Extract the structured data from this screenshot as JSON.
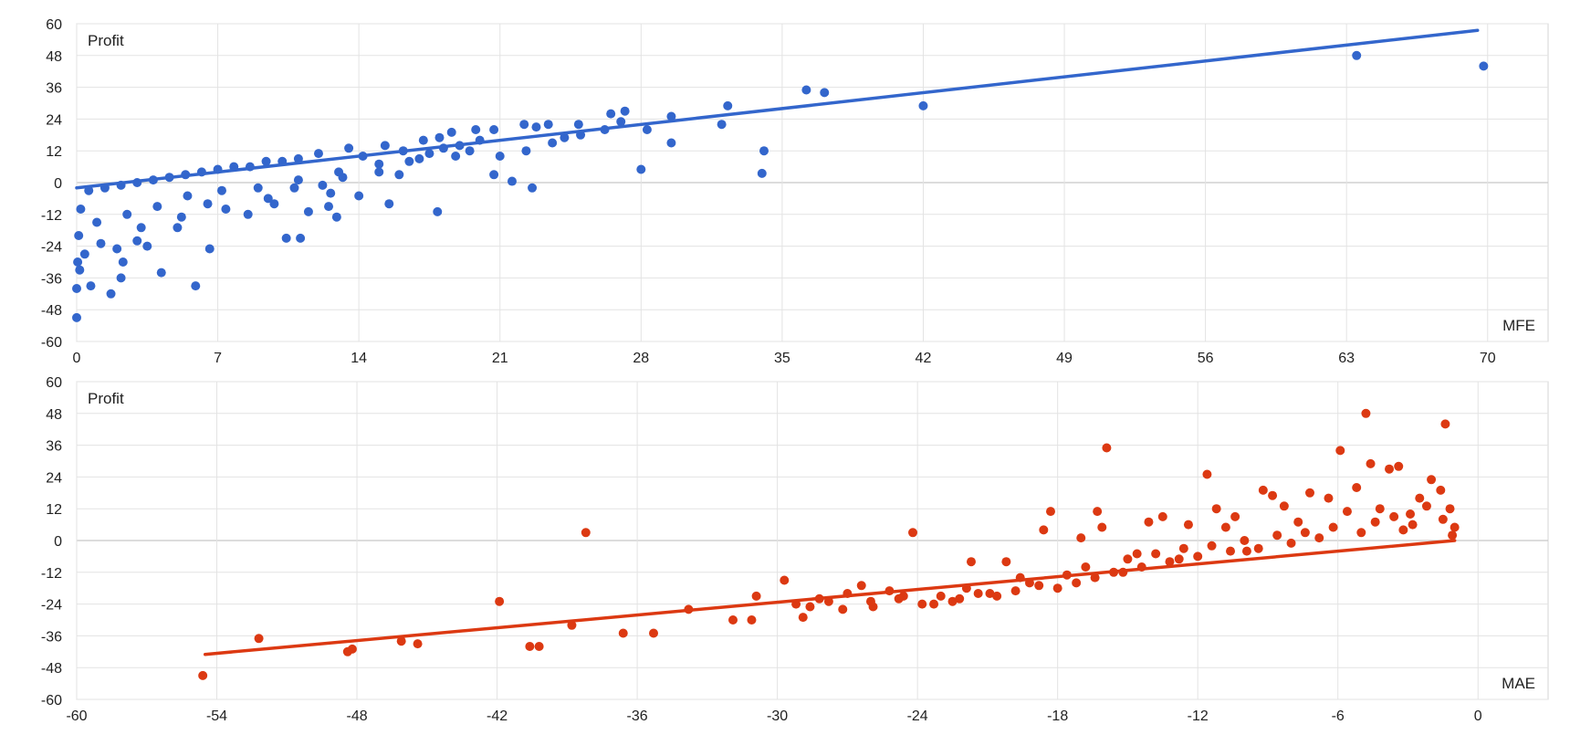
{
  "chart_data": [
    {
      "type": "scatter",
      "xlabel": "MFE",
      "ylabel": "Profit",
      "xlim": [
        0,
        73
      ],
      "ylim": [
        -60,
        60
      ],
      "xticks": [
        0,
        7,
        14,
        21,
        28,
        35,
        42,
        49,
        56,
        63,
        70
      ],
      "yticks": [
        60,
        48,
        36,
        24,
        12,
        0,
        -12,
        -24,
        -36,
        -48,
        -60
      ],
      "grid": true,
      "color": "#3366cc",
      "trendline": {
        "x": [
          0,
          69.5
        ],
        "y": [
          -2,
          57.5
        ]
      },
      "points": [
        [
          63.5,
          48
        ],
        [
          69.8,
          44
        ],
        [
          36.2,
          35
        ],
        [
          37.1,
          34
        ],
        [
          42,
          29
        ],
        [
          32.3,
          29
        ],
        [
          32,
          22
        ],
        [
          29.5,
          25
        ],
        [
          29.5,
          15
        ],
        [
          28,
          5
        ],
        [
          27.2,
          27
        ],
        [
          26.5,
          26
        ],
        [
          27,
          23
        ],
        [
          28.3,
          20
        ],
        [
          34.1,
          12
        ],
        [
          34,
          3.5
        ],
        [
          24.9,
          22
        ],
        [
          23.4,
          22
        ],
        [
          22.2,
          22
        ],
        [
          22.8,
          21
        ],
        [
          24.2,
          17
        ],
        [
          20.7,
          20
        ],
        [
          18.6,
          19
        ],
        [
          19.8,
          20
        ],
        [
          22.6,
          -2
        ],
        [
          21.6,
          0.5
        ],
        [
          20.7,
          3
        ],
        [
          17.9,
          -11
        ],
        [
          15.5,
          -8
        ],
        [
          14,
          -5
        ],
        [
          12.9,
          -13
        ],
        [
          12.5,
          -9
        ],
        [
          11.5,
          -11
        ],
        [
          10.4,
          -21
        ],
        [
          11.1,
          -21
        ],
        [
          6.6,
          -25
        ],
        [
          5.9,
          -39
        ],
        [
          4.2,
          -34
        ],
        [
          2.2,
          -36
        ],
        [
          1.7,
          -42
        ],
        [
          0.7,
          -39
        ],
        [
          0,
          -40
        ],
        [
          0,
          -51
        ],
        [
          2.3,
          -30
        ],
        [
          2,
          -25
        ],
        [
          3,
          -22
        ],
        [
          3.5,
          -24
        ],
        [
          5,
          -17
        ],
        [
          6.5,
          -8
        ],
        [
          8.5,
          -12
        ],
        [
          9.5,
          -6
        ],
        [
          10.8,
          -2
        ],
        [
          12.2,
          -1
        ],
        [
          13.2,
          2
        ],
        [
          15,
          4
        ],
        [
          16.5,
          8
        ],
        [
          17.5,
          11
        ],
        [
          18.8,
          10
        ],
        [
          19.5,
          12
        ],
        [
          21,
          10
        ],
        [
          22.3,
          12
        ],
        [
          23.6,
          15
        ],
        [
          15.3,
          14
        ],
        [
          16.2,
          12
        ],
        [
          17.2,
          16
        ],
        [
          18,
          17
        ],
        [
          14.2,
          10
        ],
        [
          13.5,
          13
        ],
        [
          12,
          11
        ],
        [
          11,
          9
        ],
        [
          10.2,
          8
        ],
        [
          9.4,
          8
        ],
        [
          8.6,
          6
        ],
        [
          7.8,
          6
        ],
        [
          7,
          5
        ],
        [
          6.2,
          4
        ],
        [
          5.4,
          3
        ],
        [
          4.6,
          2
        ],
        [
          3.8,
          1
        ],
        [
          3,
          0
        ],
        [
          2.2,
          -1
        ],
        [
          1.4,
          -2
        ],
        [
          0.6,
          -3
        ],
        [
          0.2,
          -10
        ],
        [
          0.1,
          -20
        ],
        [
          0.05,
          -30
        ],
        [
          0.15,
          -33
        ],
        [
          1,
          -15
        ],
        [
          2.5,
          -12
        ],
        [
          4,
          -9
        ],
        [
          5.5,
          -5
        ],
        [
          7.2,
          -3
        ],
        [
          9,
          -2
        ],
        [
          11,
          1
        ],
        [
          13,
          4
        ],
        [
          15,
          7
        ],
        [
          17,
          9
        ],
        [
          16,
          3
        ],
        [
          12.6,
          -4
        ],
        [
          9.8,
          -8
        ],
        [
          7.4,
          -10
        ],
        [
          5.2,
          -13
        ],
        [
          3.2,
          -17
        ],
        [
          1.2,
          -23
        ],
        [
          0.4,
          -27
        ],
        [
          25,
          18
        ],
        [
          26.2,
          20
        ],
        [
          20,
          16
        ],
        [
          19,
          14
        ],
        [
          18.2,
          13
        ]
      ]
    },
    {
      "type": "scatter",
      "xlabel": "MAE",
      "ylabel": "Profit",
      "xlim": [
        -60,
        3
      ],
      "ylim": [
        -60,
        60
      ],
      "xticks": [
        -60,
        -54,
        -48,
        -42,
        -36,
        -30,
        -24,
        -18,
        -12,
        -6,
        0
      ],
      "yticks": [
        60,
        48,
        36,
        24,
        12,
        0,
        -12,
        -24,
        -36,
        -48,
        -60
      ],
      "grid": true,
      "color": "#dc3912",
      "trendline": {
        "x": [
          -54.5,
          -1
        ],
        "y": [
          -43,
          0
        ]
      },
      "points": [
        [
          -54.6,
          -51
        ],
        [
          -52.2,
          -37
        ],
        [
          -48.4,
          -42
        ],
        [
          -48.2,
          -41
        ],
        [
          -46.1,
          -38
        ],
        [
          -45.4,
          -39
        ],
        [
          -41.9,
          -23
        ],
        [
          -40.6,
          -40
        ],
        [
          -40.2,
          -40
        ],
        [
          -38.8,
          -32
        ],
        [
          -38.2,
          3
        ],
        [
          -36.6,
          -35
        ],
        [
          -35.3,
          -35
        ],
        [
          -33.8,
          -26
        ],
        [
          -31.9,
          -30
        ],
        [
          -31.1,
          -30
        ],
        [
          -30.9,
          -21
        ],
        [
          -29.7,
          -15
        ],
        [
          -28.9,
          -29
        ],
        [
          -28.6,
          -25
        ],
        [
          -27.8,
          -23
        ],
        [
          -27,
          -20
        ],
        [
          -26.4,
          -17
        ],
        [
          -25.9,
          -25
        ],
        [
          -25.2,
          -19
        ],
        [
          -24.2,
          3
        ],
        [
          -24.6,
          -21
        ],
        [
          -23.3,
          -24
        ],
        [
          -22.5,
          -23
        ],
        [
          -21.9,
          -18
        ],
        [
          -21.7,
          -8
        ],
        [
          -20.9,
          -20
        ],
        [
          -20.2,
          -8
        ],
        [
          -19.6,
          -14
        ],
        [
          -19.2,
          -16
        ],
        [
          -18.6,
          4
        ],
        [
          -18.3,
          11
        ],
        [
          -17.6,
          -13
        ],
        [
          -17,
          1
        ],
        [
          -16.8,
          -10
        ],
        [
          -16.3,
          11
        ],
        [
          -16.1,
          5
        ],
        [
          -15.9,
          35
        ],
        [
          -15.2,
          -12
        ],
        [
          -14.6,
          -5
        ],
        [
          -14.1,
          7
        ],
        [
          -13.5,
          9
        ],
        [
          -12.8,
          -7
        ],
        [
          -12.4,
          6
        ],
        [
          -11.6,
          25
        ],
        [
          -11.2,
          12
        ],
        [
          -10.8,
          5
        ],
        [
          -10.4,
          9
        ],
        [
          -9.9,
          -4
        ],
        [
          -9.2,
          19
        ],
        [
          -8.8,
          17
        ],
        [
          -8.3,
          13
        ],
        [
          -7.7,
          7
        ],
        [
          -7.2,
          18
        ],
        [
          -6.4,
          16
        ],
        [
          -5.9,
          34
        ],
        [
          -5.2,
          20
        ],
        [
          -4.8,
          48
        ],
        [
          -4.6,
          29
        ],
        [
          -4.2,
          12
        ],
        [
          -3.8,
          27
        ],
        [
          -3.4,
          28
        ],
        [
          -2.9,
          10
        ],
        [
          -2.5,
          16
        ],
        [
          -2,
          23
        ],
        [
          -1.6,
          19
        ],
        [
          -1.4,
          44
        ],
        [
          -1.2,
          12
        ],
        [
          -1,
          5
        ],
        [
          -1.1,
          2
        ],
        [
          -1.5,
          8
        ],
        [
          -2.2,
          13
        ],
        [
          -2.8,
          6
        ],
        [
          -3.2,
          4
        ],
        [
          -3.6,
          9
        ],
        [
          -4.4,
          7
        ],
        [
          -5,
          3
        ],
        [
          -5.6,
          11
        ],
        [
          -6.2,
          5
        ],
        [
          -6.8,
          1
        ],
        [
          -7.4,
          3
        ],
        [
          -8,
          -1
        ],
        [
          -8.6,
          2
        ],
        [
          -9.4,
          -3
        ],
        [
          -10,
          0
        ],
        [
          -10.6,
          -4
        ],
        [
          -11.4,
          -2
        ],
        [
          -12,
          -6
        ],
        [
          -12.6,
          -3
        ],
        [
          -13.2,
          -8
        ],
        [
          -13.8,
          -5
        ],
        [
          -14.4,
          -10
        ],
        [
          -15,
          -7
        ],
        [
          -15.6,
          -12
        ],
        [
          -16.4,
          -14
        ],
        [
          -17.2,
          -16
        ],
        [
          -18,
          -18
        ],
        [
          -18.8,
          -17
        ],
        [
          -19.8,
          -19
        ],
        [
          -20.6,
          -21
        ],
        [
          -21.4,
          -20
        ],
        [
          -22.2,
          -22
        ],
        [
          -23,
          -21
        ],
        [
          -23.8,
          -24
        ],
        [
          -24.8,
          -22
        ],
        [
          -26,
          -23
        ],
        [
          -27.2,
          -26
        ],
        [
          -28.2,
          -22
        ],
        [
          -29.2,
          -24
        ]
      ]
    }
  ]
}
